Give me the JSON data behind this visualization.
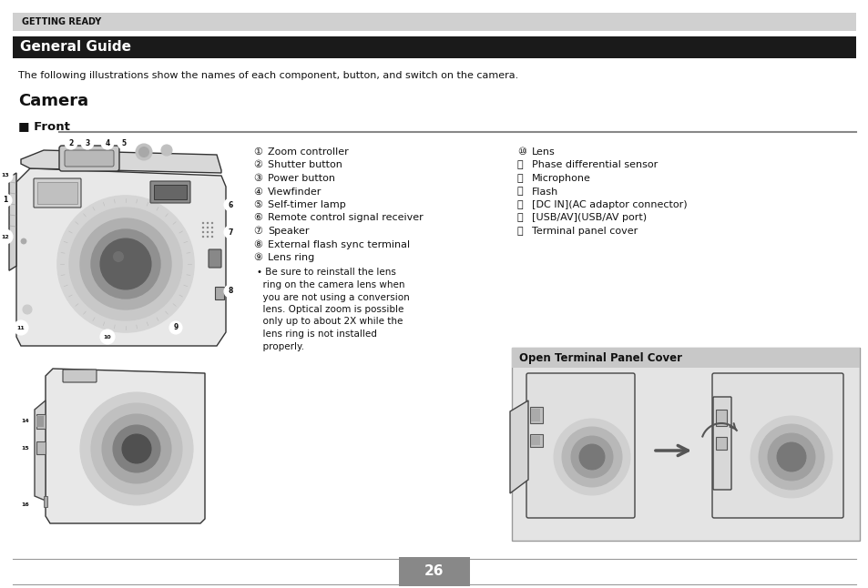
{
  "bg_color": "#ffffff",
  "header_bg": "#d0d0d0",
  "header_text": "GETTING READY",
  "title_bg": "#1a1a1a",
  "title_text": "General Guide",
  "title_text_color": "#ffffff",
  "intro_text": "The following illustrations show the names of each component, button, and switch on the camera.",
  "section_title": "Camera",
  "subsection_title": "Front",
  "col1_items": [
    [
      "①",
      "Zoom controller"
    ],
    [
      "②",
      "Shutter button"
    ],
    [
      "③",
      "Power button"
    ],
    [
      "④",
      "Viewfinder"
    ],
    [
      "⑤",
      "Self-timer lamp"
    ],
    [
      "⑥",
      "Remote control signal receiver"
    ],
    [
      "⑦",
      "Speaker"
    ],
    [
      "⑧",
      "External flash sync terminal"
    ],
    [
      "⑨",
      "Lens ring"
    ]
  ],
  "col1_bullet_lines": [
    "• Be sure to reinstall the lens",
    "  ring on the camera lens when",
    "  you are not using a conversion",
    "  lens. Optical zoom is possible",
    "  only up to about 2X while the",
    "  lens ring is not installed",
    "  properly."
  ],
  "col2_items": [
    [
      "⑩",
      "Lens"
    ],
    [
      "⑪",
      "Phase differential sensor"
    ],
    [
      "⑫",
      "Microphone"
    ],
    [
      "⑬",
      "Flash"
    ],
    [
      "⑭",
      "[DC IN](AC adaptor connector)"
    ],
    [
      "⑮",
      "[USB/AV](USB/AV port)"
    ],
    [
      "⑯",
      "Terminal panel cover"
    ]
  ],
  "panel_cover_title": "Open Terminal Panel Cover",
  "page_number": "26",
  "page_text_color": "#ffffff",
  "footer_line_color": "#999999",
  "page_box_color": "#888888"
}
